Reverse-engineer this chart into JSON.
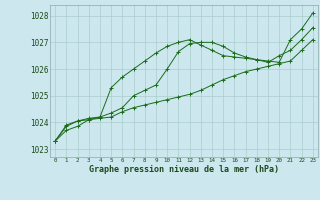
{
  "title": "Graphe pression niveau de la mer (hPa)",
  "bg_color": "#cce8ee",
  "grid_color": "#aacccc",
  "line_color": "#1a6b1a",
  "xlabel_color": "#1a4a1a",
  "ylabel_ticks": [
    1023,
    1024,
    1025,
    1026,
    1027,
    1028
  ],
  "xlim": [
    -0.5,
    23.5
  ],
  "ylim": [
    1022.7,
    1028.4
  ],
  "series": [
    [
      1023.3,
      1023.7,
      1023.85,
      1024.1,
      1024.15,
      1024.2,
      1024.4,
      1024.55,
      1024.65,
      1024.75,
      1024.85,
      1024.95,
      1025.05,
      1025.2,
      1025.4,
      1025.6,
      1025.75,
      1025.9,
      1026.0,
      1026.1,
      1026.2,
      1026.3,
      1026.7,
      1027.1
    ],
    [
      1023.3,
      1023.85,
      1024.05,
      1024.15,
      1024.2,
      1024.35,
      1024.55,
      1025.0,
      1025.2,
      1025.4,
      1026.0,
      1026.65,
      1026.95,
      1027.0,
      1027.0,
      1026.85,
      1026.6,
      1026.45,
      1026.35,
      1026.25,
      1026.5,
      1026.7,
      1027.1,
      1027.55
    ],
    [
      1023.3,
      1023.9,
      1024.05,
      1024.1,
      1024.2,
      1025.3,
      1025.7,
      1026.0,
      1026.3,
      1026.6,
      1026.85,
      1027.0,
      1027.1,
      1026.9,
      1026.7,
      1026.5,
      1026.45,
      1026.4,
      1026.35,
      1026.3,
      1026.25,
      1027.1,
      1027.5,
      1028.1
    ]
  ]
}
